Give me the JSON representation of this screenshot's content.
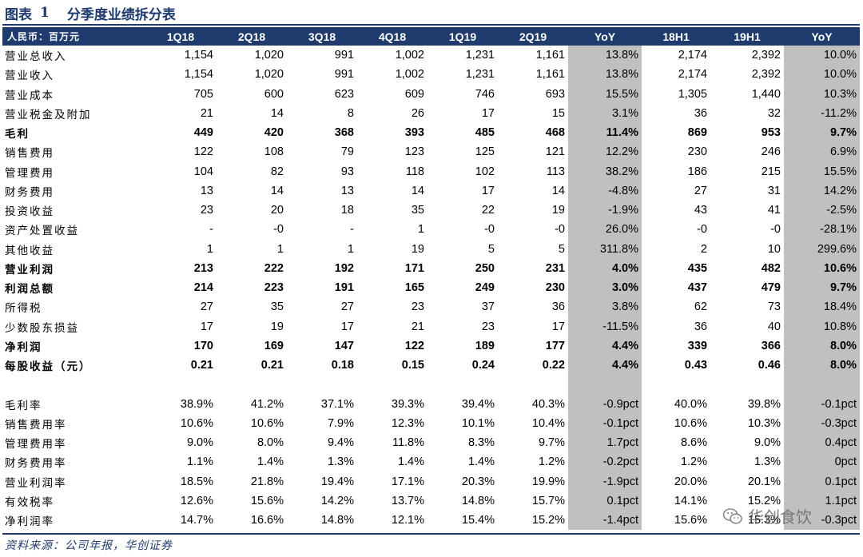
{
  "figure": {
    "label": "图表",
    "number": "1",
    "title": "分季度业绩拆分表"
  },
  "table": {
    "headers": [
      "人民币：百万元",
      "1Q18",
      "2Q18",
      "3Q18",
      "4Q18",
      "1Q19",
      "2Q19",
      "YoY",
      "18H1",
      "19H1",
      "YoY"
    ],
    "rows": [
      {
        "label": "营业总收入",
        "bold": false,
        "cells": [
          "1,154",
          "1,020",
          "991",
          "1,002",
          "1,231",
          "1,161",
          "13.8%",
          "2,174",
          "2,392",
          "10.0%"
        ]
      },
      {
        "label": "营业收入",
        "bold": false,
        "cells": [
          "1,154",
          "1,020",
          "991",
          "1,002",
          "1,231",
          "1,161",
          "13.8%",
          "2,174",
          "2,392",
          "10.0%"
        ]
      },
      {
        "label": "营业成本",
        "bold": false,
        "cells": [
          "705",
          "600",
          "623",
          "609",
          "746",
          "693",
          "15.5%",
          "1,305",
          "1,440",
          "10.3%"
        ]
      },
      {
        "label": "营业税金及附加",
        "bold": false,
        "cells": [
          "21",
          "14",
          "8",
          "26",
          "17",
          "15",
          "3.1%",
          "36",
          "32",
          "-11.2%"
        ]
      },
      {
        "label": "毛利",
        "bold": true,
        "cells": [
          "449",
          "420",
          "368",
          "393",
          "485",
          "468",
          "11.4%",
          "869",
          "953",
          "9.7%"
        ]
      },
      {
        "label": "销售费用",
        "bold": false,
        "cells": [
          "122",
          "108",
          "79",
          "123",
          "125",
          "121",
          "12.2%",
          "230",
          "246",
          "6.9%"
        ]
      },
      {
        "label": "管理费用",
        "bold": false,
        "cells": [
          "104",
          "82",
          "93",
          "118",
          "102",
          "113",
          "38.2%",
          "186",
          "215",
          "15.5%"
        ]
      },
      {
        "label": "财务费用",
        "bold": false,
        "cells": [
          "13",
          "14",
          "13",
          "14",
          "17",
          "14",
          "-4.8%",
          "27",
          "31",
          "14.2%"
        ]
      },
      {
        "label": "投资收益",
        "bold": false,
        "cells": [
          "23",
          "20",
          "18",
          "35",
          "22",
          "19",
          "-1.9%",
          "43",
          "41",
          "-2.5%"
        ]
      },
      {
        "label": "资产处置收益",
        "bold": false,
        "cells": [
          "-",
          "-0",
          "-",
          "1",
          "-0",
          "-0",
          "26.0%",
          "-0",
          "-0",
          "-28.1%"
        ]
      },
      {
        "label": "其他收益",
        "bold": false,
        "cells": [
          "1",
          "1",
          "1",
          "19",
          "5",
          "5",
          "311.8%",
          "2",
          "10",
          "299.6%"
        ]
      },
      {
        "label": "营业利润",
        "bold": true,
        "cells": [
          "213",
          "222",
          "192",
          "171",
          "250",
          "231",
          "4.0%",
          "435",
          "482",
          "10.6%"
        ]
      },
      {
        "label": "利润总额",
        "bold": true,
        "cells": [
          "214",
          "223",
          "191",
          "165",
          "249",
          "230",
          "3.0%",
          "437",
          "479",
          "9.7%"
        ]
      },
      {
        "label": "所得税",
        "bold": false,
        "cells": [
          "27",
          "35",
          "27",
          "23",
          "37",
          "36",
          "3.8%",
          "62",
          "73",
          "18.4%"
        ]
      },
      {
        "label": "少数股东损益",
        "bold": false,
        "cells": [
          "17",
          "19",
          "17",
          "21",
          "23",
          "17",
          "-11.5%",
          "36",
          "40",
          "10.8%"
        ]
      },
      {
        "label": "净利润",
        "bold": true,
        "cells": [
          "170",
          "169",
          "147",
          "122",
          "189",
          "177",
          "4.4%",
          "339",
          "366",
          "8.0%"
        ]
      },
      {
        "label": "每股收益（元）",
        "bold": true,
        "cells": [
          "0.21",
          "0.21",
          "0.18",
          "0.15",
          "0.24",
          "0.22",
          "4.4%",
          "0.43",
          "0.46",
          "8.0%"
        ]
      },
      {
        "label": "",
        "bold": false,
        "blank": true,
        "cells": [
          "",
          "",
          "",
          "",
          "",
          "",
          "",
          "",
          "",
          ""
        ]
      },
      {
        "label": "毛利率",
        "bold": false,
        "cells": [
          "38.9%",
          "41.2%",
          "37.1%",
          "39.3%",
          "39.4%",
          "40.3%",
          "-0.9pct",
          "40.0%",
          "39.8%",
          "-0.1pct"
        ]
      },
      {
        "label": "销售费用率",
        "bold": false,
        "cells": [
          "10.6%",
          "10.6%",
          "7.9%",
          "12.3%",
          "10.1%",
          "10.4%",
          "-0.1pct",
          "10.6%",
          "10.3%",
          "-0.3pct"
        ]
      },
      {
        "label": "管理费用率",
        "bold": false,
        "cells": [
          "9.0%",
          "8.0%",
          "9.4%",
          "11.8%",
          "8.3%",
          "9.7%",
          "1.7pct",
          "8.6%",
          "9.0%",
          "0.4pct"
        ]
      },
      {
        "label": "财务费用率",
        "bold": false,
        "cells": [
          "1.1%",
          "1.4%",
          "1.3%",
          "1.4%",
          "1.4%",
          "1.2%",
          "-0.2pct",
          "1.2%",
          "1.3%",
          "0pct"
        ]
      },
      {
        "label": "营业利润率",
        "bold": false,
        "cells": [
          "18.5%",
          "21.8%",
          "19.4%",
          "17.1%",
          "20.3%",
          "19.9%",
          "-1.9pct",
          "20.0%",
          "20.1%",
          "0.1pct"
        ]
      },
      {
        "label": "有效税率",
        "bold": false,
        "cells": [
          "12.6%",
          "15.6%",
          "14.2%",
          "13.7%",
          "14.8%",
          "15.7%",
          "0.1pct",
          "14.1%",
          "15.2%",
          "1.1pct"
        ]
      },
      {
        "label": "净利润率",
        "bold": false,
        "cells": [
          "14.7%",
          "16.6%",
          "14.8%",
          "12.1%",
          "15.4%",
          "15.2%",
          "-1.4pct",
          "15.6%",
          "15.3%",
          "-0.3pct"
        ]
      }
    ]
  },
  "source": "资料来源：公司年报，华创证券",
  "watermark": {
    "text": "华创食饮",
    "icon": "wechat-icon"
  },
  "colors": {
    "header_bg": "#1f3b6e",
    "yoy_bg": "#c0c0c0"
  }
}
